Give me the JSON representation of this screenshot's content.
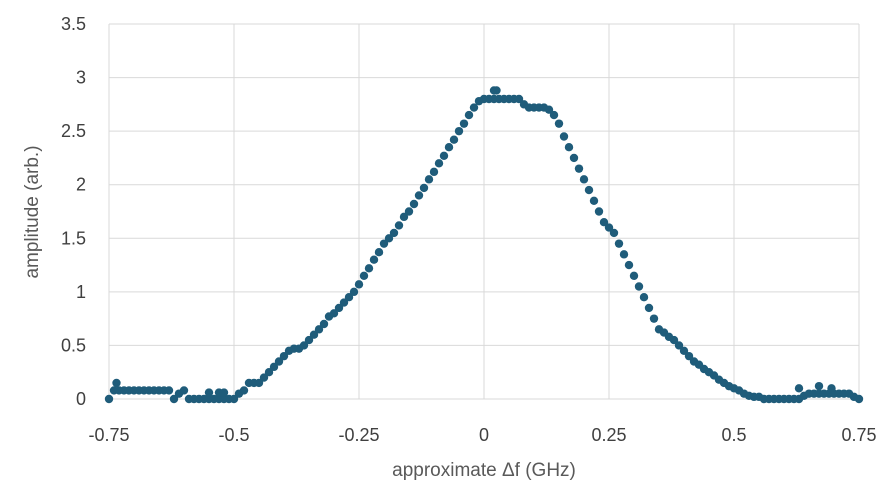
{
  "chart_data": {
    "type": "scatter",
    "title": "",
    "xlabel": "approximate Δf (GHz)",
    "ylabel": "amplitude (arb.)",
    "xlim": [
      -0.75,
      0.75
    ],
    "ylim": [
      0,
      3.5
    ],
    "grid": true,
    "legend": "none",
    "marker_color": "#1f5c7a",
    "x_ticks": [
      "-0.75",
      "-0.5",
      "-0.25",
      "0",
      "0.25",
      "0.5",
      "0.75"
    ],
    "y_ticks": [
      "0",
      "0.5",
      "1",
      "1.5",
      "2",
      "2.5",
      "3",
      "3.5"
    ],
    "series": [
      {
        "x": [
          -0.75,
          -0.74,
          -0.73,
          -0.72,
          -0.71,
          -0.7,
          -0.69,
          -0.68,
          -0.67,
          -0.66,
          -0.65,
          -0.64,
          -0.63,
          -0.62,
          -0.61,
          -0.6,
          -0.59,
          -0.58,
          -0.57,
          -0.56,
          -0.55,
          -0.54,
          -0.53,
          -0.52,
          -0.51,
          -0.5,
          -0.49,
          -0.48,
          -0.47,
          -0.46,
          -0.45,
          -0.44,
          -0.43,
          -0.42,
          -0.41,
          -0.4,
          -0.39,
          -0.38,
          -0.37,
          -0.36,
          -0.35,
          -0.34,
          -0.33,
          -0.32,
          -0.31,
          -0.3,
          -0.29,
          -0.28,
          -0.27,
          -0.26,
          -0.25,
          -0.24,
          -0.23,
          -0.22,
          -0.21,
          -0.2,
          -0.19,
          -0.18,
          -0.17,
          -0.16,
          -0.15,
          -0.14,
          -0.13,
          -0.12,
          -0.11,
          -0.1,
          -0.09,
          -0.08,
          -0.07,
          -0.06,
          -0.05,
          -0.04,
          -0.03,
          -0.02,
          -0.01,
          0.0,
          0.01,
          0.02,
          0.03,
          0.04,
          0.05,
          0.06,
          0.07,
          0.08,
          0.09,
          0.1,
          0.11,
          0.12,
          0.13,
          0.14,
          0.15,
          0.16,
          0.17,
          0.18,
          0.19,
          0.2,
          0.21,
          0.22,
          0.23,
          0.24,
          0.25,
          0.26,
          0.27,
          0.28,
          0.29,
          0.3,
          0.31,
          0.32,
          0.33,
          0.34,
          0.35,
          0.36,
          0.37,
          0.38,
          0.39,
          0.4,
          0.41,
          0.42,
          0.43,
          0.44,
          0.45,
          0.46,
          0.47,
          0.48,
          0.49,
          0.5,
          0.51,
          0.52,
          0.53,
          0.54,
          0.55,
          0.56,
          0.57,
          0.58,
          0.59,
          0.6,
          0.61,
          0.62,
          0.63,
          0.64,
          0.65,
          0.66,
          0.67,
          0.68,
          0.69,
          0.7,
          0.71,
          0.72,
          0.73,
          0.74,
          0.75,
          -0.735,
          -0.55,
          -0.53,
          -0.52,
          0.02,
          0.025,
          0.63,
          0.67,
          0.695
        ],
        "y": [
          0.0,
          0.08,
          0.08,
          0.08,
          0.08,
          0.08,
          0.08,
          0.08,
          0.08,
          0.08,
          0.08,
          0.08,
          0.08,
          0.0,
          0.05,
          0.08,
          0.0,
          0.0,
          0.0,
          0.0,
          0.0,
          0.0,
          0.0,
          0.0,
          0.0,
          0.0,
          0.05,
          0.08,
          0.15,
          0.15,
          0.15,
          0.2,
          0.25,
          0.3,
          0.35,
          0.4,
          0.45,
          0.47,
          0.47,
          0.5,
          0.55,
          0.6,
          0.65,
          0.7,
          0.77,
          0.8,
          0.85,
          0.9,
          0.95,
          1.0,
          1.07,
          1.15,
          1.22,
          1.3,
          1.37,
          1.45,
          1.5,
          1.55,
          1.62,
          1.7,
          1.75,
          1.82,
          1.9,
          1.97,
          2.05,
          2.12,
          2.2,
          2.27,
          2.35,
          2.42,
          2.5,
          2.57,
          2.65,
          2.72,
          2.78,
          2.8,
          2.8,
          2.8,
          2.8,
          2.8,
          2.8,
          2.8,
          2.8,
          2.75,
          2.72,
          2.72,
          2.72,
          2.72,
          2.7,
          2.65,
          2.57,
          2.45,
          2.35,
          2.25,
          2.15,
          2.05,
          1.95,
          1.85,
          1.75,
          1.65,
          1.6,
          1.55,
          1.45,
          1.35,
          1.25,
          1.15,
          1.05,
          0.95,
          0.85,
          0.75,
          0.65,
          0.62,
          0.58,
          0.55,
          0.5,
          0.45,
          0.4,
          0.35,
          0.32,
          0.28,
          0.25,
          0.22,
          0.18,
          0.15,
          0.12,
          0.1,
          0.08,
          0.05,
          0.03,
          0.02,
          0.02,
          0.0,
          0.0,
          0.0,
          0.0,
          0.0,
          0.0,
          0.0,
          0.0,
          0.03,
          0.05,
          0.05,
          0.05,
          0.05,
          0.05,
          0.05,
          0.05,
          0.05,
          0.05,
          0.02,
          0.0,
          0.15,
          0.06,
          0.06,
          0.06,
          2.88,
          2.88,
          0.1,
          0.12,
          0.1
        ]
      }
    ]
  }
}
